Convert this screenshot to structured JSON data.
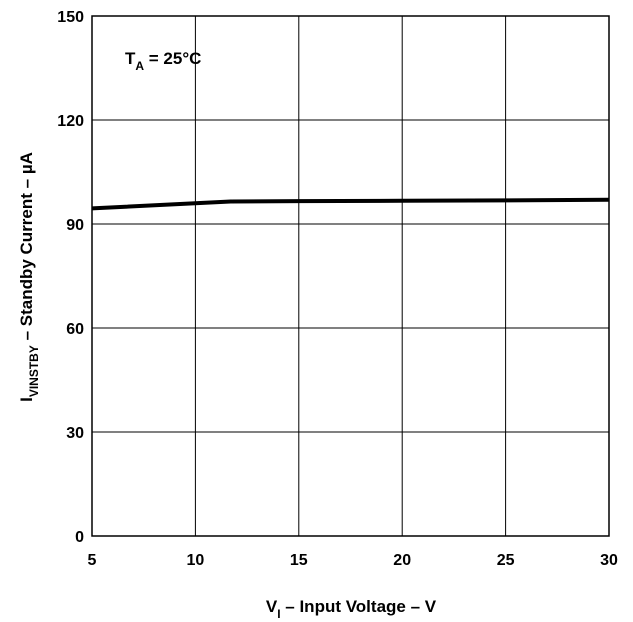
{
  "chart_data": {
    "type": "line",
    "x": [
      5,
      11.7,
      15,
      20,
      25,
      30
    ],
    "series": [
      {
        "values": [
          94.5,
          96.5,
          96.6,
          96.7,
          96.8,
          97.0
        ]
      }
    ],
    "xlim": [
      5,
      30
    ],
    "ylim": [
      0,
      150
    ],
    "x_ticks": [
      "5",
      "10",
      "15",
      "20",
      "25",
      "30"
    ],
    "y_ticks": [
      "0",
      "30",
      "60",
      "90",
      "120",
      "150"
    ],
    "xlabel": {
      "pre": "V",
      "sub": "I",
      "post": " – Input Voltage  –  V"
    },
    "ylabel": {
      "pre": "I",
      "sub": "VINSTBY",
      "post": " – Standby Current  –  µA"
    },
    "annotation": {
      "pre": "T",
      "sub": "A",
      "post": " = 25°C"
    },
    "grid": true,
    "line_color": "#000000"
  }
}
